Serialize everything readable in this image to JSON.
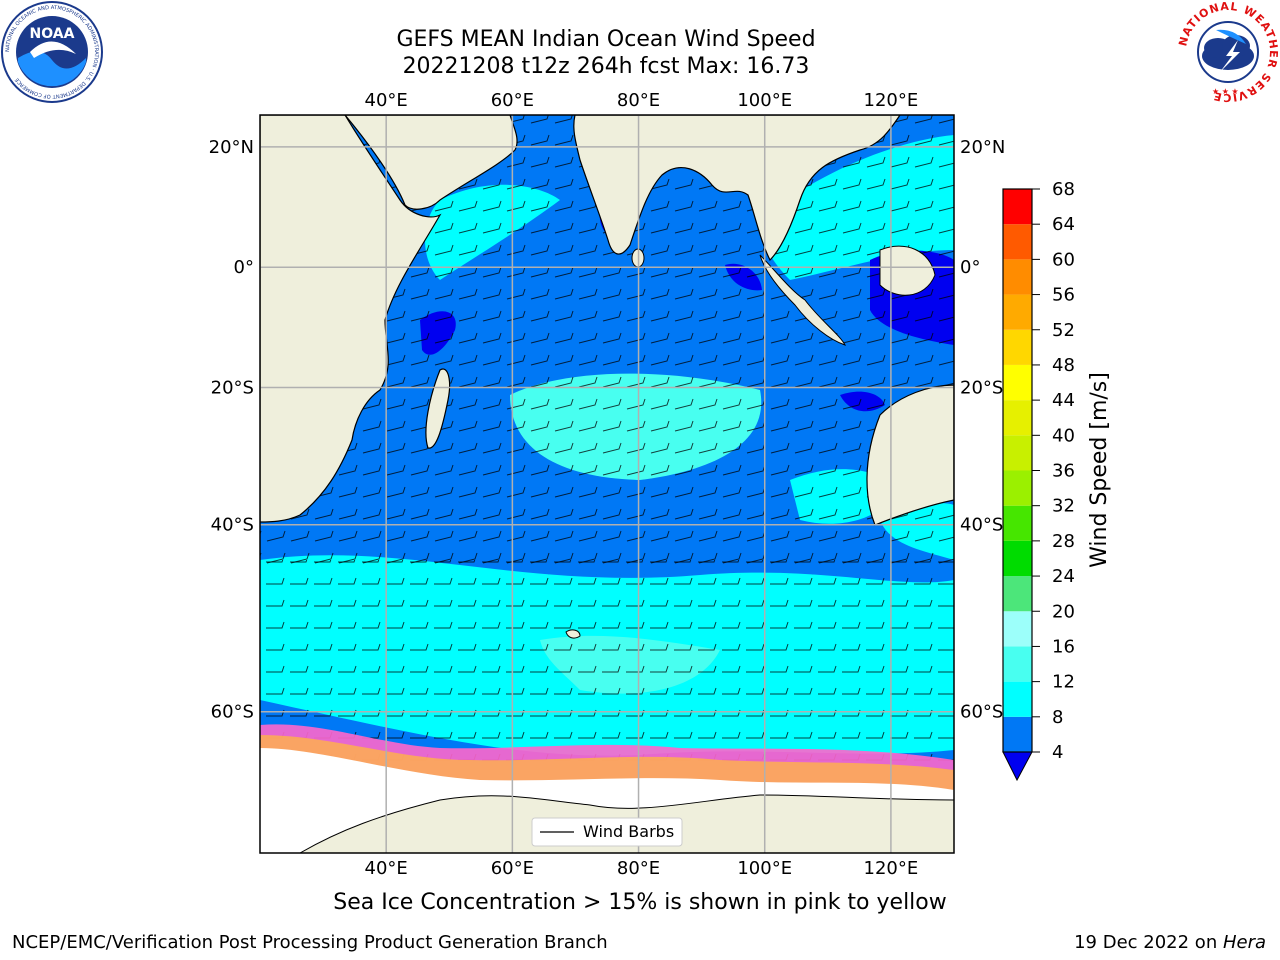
{
  "header": {
    "title_line1": "GEFS MEAN Indian Ocean Wind Speed",
    "title_line2": "20221208 t12z 264h fcst   Max: 16.73"
  },
  "logos": {
    "noaa_text": "NOAA",
    "noaa_ring": "NATIONAL OCEANIC AND ATMOSPHERIC ADMINISTRATION · U.S. DEPARTMENT OF COMMERCE",
    "nws_ring": "NATIONAL WEATHER SERVICE"
  },
  "map": {
    "lon_ticks": [
      "40°E",
      "60°E",
      "80°E",
      "100°E",
      "120°E"
    ],
    "lon_values": [
      40,
      60,
      80,
      100,
      120
    ],
    "lat_ticks": [
      "20°N",
      "0°",
      "20°S",
      "40°S",
      "60°S"
    ],
    "lat_values": [
      20,
      0,
      -20,
      -40,
      -60
    ],
    "extent": {
      "lon": [
        20,
        130
      ],
      "lat": [
        -70,
        25
      ]
    },
    "legend_label": "Wind Barbs",
    "colors": {
      "land": "#efefdc",
      "ocean_4_8": "#0078f5",
      "ocean_8_12": "#00ffff",
      "ocean_12_16": "#48fff0",
      "ocean_under_4": "#0000f0",
      "grid": "#b0b0b0",
      "ice_pink": "#ff66cc",
      "ice_orange": "#ffb347"
    }
  },
  "colorbar": {
    "label": "Wind Speed [m/s]",
    "ticks": [
      "4",
      "8",
      "12",
      "16",
      "20",
      "24",
      "28",
      "32",
      "36",
      "40",
      "44",
      "48",
      "52",
      "56",
      "60",
      "64",
      "68"
    ],
    "colors": [
      "#0078f5",
      "#00ffff",
      "#48fff0",
      "#9cfffa",
      "#4ce67a",
      "#00dc00",
      "#46e600",
      "#9bf000",
      "#c8f000",
      "#e6f000",
      "#ffff00",
      "#ffd700",
      "#ffaa00",
      "#ff8c00",
      "#ff5a00",
      "#ff0000"
    ],
    "extend_color": "#0000f0"
  },
  "caption": "Sea Ice Concentration > 15% is shown in pink to yellow",
  "footer": {
    "left": "NCEP/EMC/Verification Post Processing Product Generation Branch",
    "right_prefix": "19 Dec 2022 on ",
    "right_host": "Hera"
  }
}
